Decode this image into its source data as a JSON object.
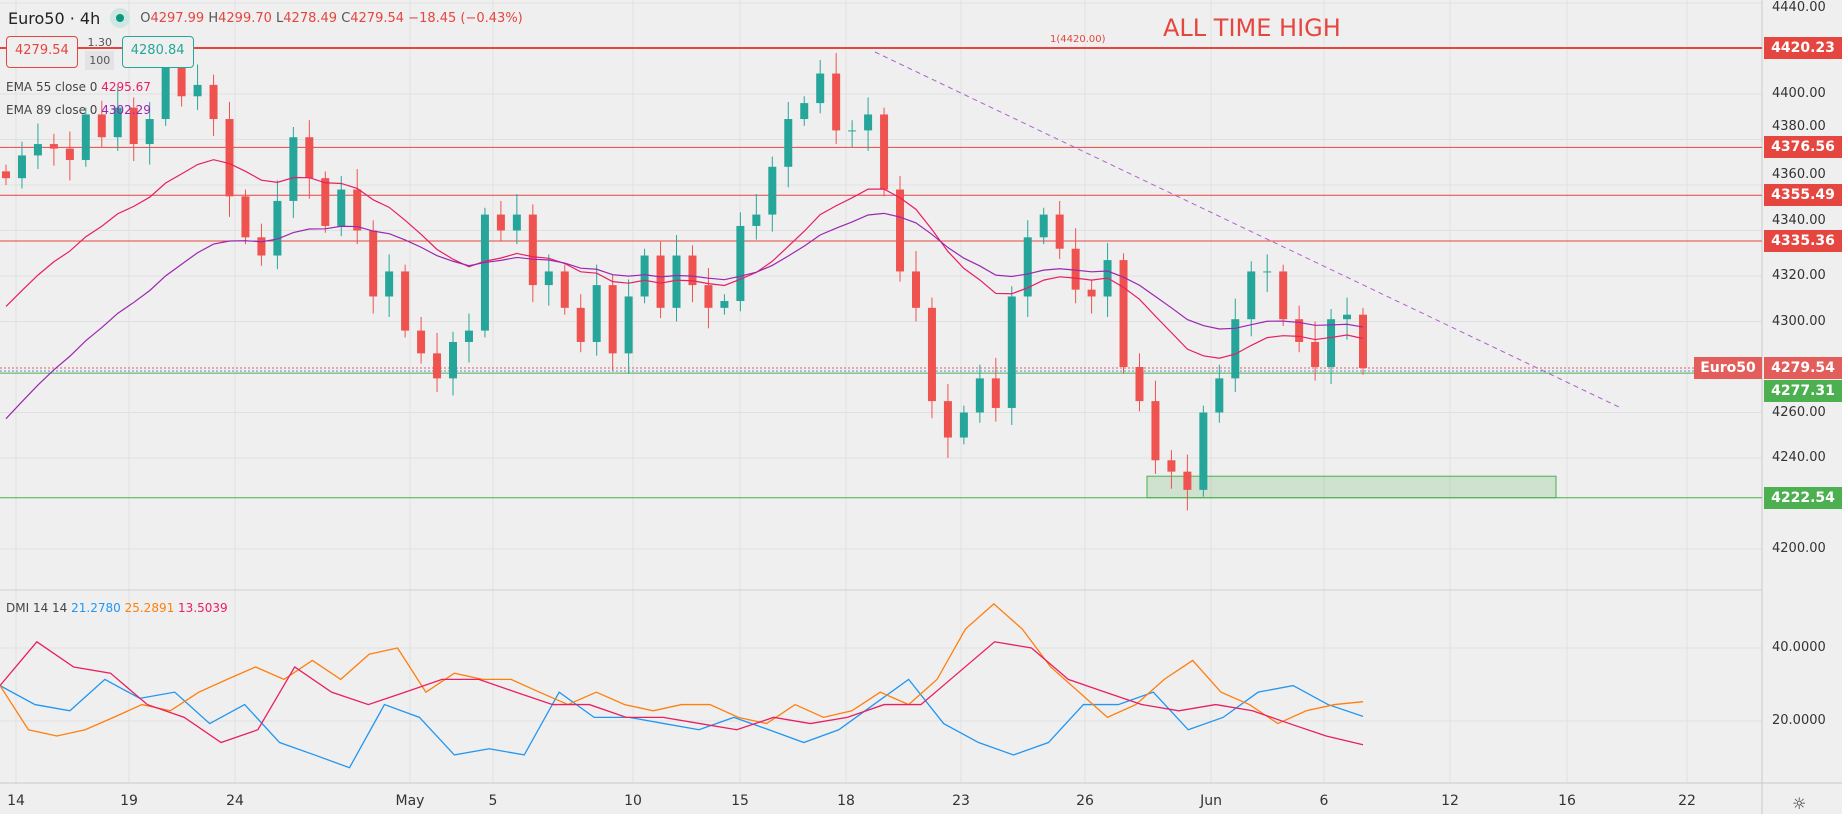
{
  "header": {
    "symbol": "Euro50 · 4h",
    "o_label": "O",
    "o": "4297.99",
    "h_label": "H",
    "h": "4299.70",
    "l_label": "L",
    "l": "4278.49",
    "c_label": "C",
    "c": "4279.54",
    "change": "−18.45 (−0.43%)"
  },
  "trade": {
    "sell": "4279.54",
    "spread": "1.30",
    "qty": "100",
    "buy": "4280.84"
  },
  "indicators": {
    "ema55_label": "EMA 55 close 0",
    "ema55_value": "4295.67",
    "ema89_label": "EMA 89 close 0",
    "ema89_value": "4302.29",
    "dmi_label": "DMI 14 14",
    "dmi_plus": "21.2780",
    "dmi_minus": "25.2891",
    "adx": "13.5039"
  },
  "annotations": {
    "ath_text": "ALL TIME HIGH",
    "fib_text": "1(4420.00)"
  },
  "colors": {
    "up": "#26a69a",
    "down": "#ef5350",
    "resistance": "#e5463f",
    "support": "#4caf50",
    "ema55": "#e91e63",
    "ema89": "#9c27b0",
    "dmi_plus": "#2196f3",
    "dmi_minus": "#ff7f0e",
    "adx": "#e91e63",
    "trendline": "#b05fd0"
  },
  "chart_data": [
    {
      "type": "candlestick",
      "title": "Euro50 · 4h",
      "ylim": [
        4190,
        4445
      ],
      "y_ticks": [
        "4440.00",
        "4400.00",
        "4380.00",
        "4360.00",
        "4340.00",
        "4320.00",
        "4300.00",
        "4260.00",
        "4240.00",
        "4200.00"
      ],
      "x_ticks": [
        "14",
        "19",
        "24",
        "May",
        "5",
        "10",
        "15",
        "18",
        "23",
        "26",
        "Jun",
        "6",
        "12",
        "16",
        "22"
      ],
      "close": [
        4363,
        4373,
        4378,
        4376,
        4371,
        4391,
        4381,
        4394,
        4378,
        4389,
        4414,
        4399,
        4404,
        4389,
        4355,
        4337,
        4329,
        4353,
        4381,
        4363,
        4342,
        4358,
        4340,
        4311,
        4322,
        4296,
        4286,
        4275,
        4291,
        4296,
        4347,
        4340,
        4347,
        4316,
        4322,
        4306,
        4291,
        4316,
        4286,
        4311,
        4329,
        4306,
        4329,
        4316,
        4306,
        4309,
        4342,
        4347,
        4368,
        4389,
        4396,
        4409,
        4384,
        4384,
        4391,
        4358,
        4322,
        4306,
        4265,
        4249,
        4260,
        4275,
        4262,
        4311,
        4337,
        4347,
        4332,
        4314,
        4311,
        4327,
        4280,
        4265,
        4239,
        4234,
        4226,
        4260,
        4275,
        4301,
        4322,
        4322,
        4301,
        4291,
        4280,
        4301,
        4303,
        4279.54
      ],
      "last_price_label": "Euro50",
      "last_price": "4279.54",
      "levels": [
        {
          "value": "4420.23",
          "kind": "resistance"
        },
        {
          "value": "4376.56",
          "kind": "resistance"
        },
        {
          "value": "4355.49",
          "kind": "resistance"
        },
        {
          "value": "4335.36",
          "kind": "resistance"
        },
        {
          "value": "4277.31",
          "kind": "support"
        },
        {
          "value": "4222.54",
          "kind": "support"
        }
      ],
      "demand_zone": [
        4222.54,
        4232
      ]
    },
    {
      "type": "line",
      "title": "DMI 14 14",
      "ylim": [
        0,
        55
      ],
      "y_ticks": [
        "40.0000",
        "20.0000"
      ],
      "series": [
        {
          "name": "+DI",
          "values": [
            29.7,
            24.5,
            22.8,
            31.4,
            26.2,
            27.9,
            19.3,
            24.5,
            14.1,
            10.7,
            7.2,
            24.5,
            21.0,
            10.7,
            12.4,
            10.7,
            27.9,
            21.0,
            21.0,
            19.3,
            17.6,
            21.0,
            17.6,
            14.1,
            17.6,
            24.5,
            31.4,
            19.3,
            14.1,
            10.7,
            14.1,
            24.5,
            24.5,
            27.9,
            17.6,
            21.0,
            27.9,
            29.7,
            24.5,
            21.28
          ]
        },
        {
          "name": "-DI",
          "values": [
            29.7,
            17.6,
            15.9,
            17.6,
            21.0,
            24.5,
            22.8,
            27.9,
            31.4,
            34.8,
            31.4,
            36.6,
            31.4,
            38.3,
            40,
            27.9,
            33.1,
            31.4,
            31.4,
            27.9,
            24.5,
            27.9,
            24.5,
            22.8,
            24.5,
            24.5,
            21.0,
            19.3,
            24.5,
            21.0,
            22.8,
            27.9,
            24.5,
            31.4,
            45.2,
            52.1,
            45.2,
            34.8,
            27.9,
            21.0,
            24.5,
            31.4,
            36.6,
            27.9,
            24.5,
            19.3,
            22.8,
            24.5,
            25.29
          ]
        },
        {
          "name": "ADX",
          "values": [
            29.7,
            41.7,
            34.8,
            33.1,
            24.5,
            21.0,
            14.1,
            17.6,
            34.8,
            27.9,
            24.5,
            27.9,
            31.4,
            31.4,
            27.9,
            24.5,
            24.5,
            21.0,
            21.0,
            19.3,
            17.6,
            21.0,
            19.3,
            21.0,
            24.5,
            24.5,
            33.1,
            41.7,
            40,
            31.4,
            27.9,
            24.5,
            22.8,
            24.5,
            22.8,
            19.3,
            15.9,
            13.5
          ]
        }
      ]
    }
  ]
}
